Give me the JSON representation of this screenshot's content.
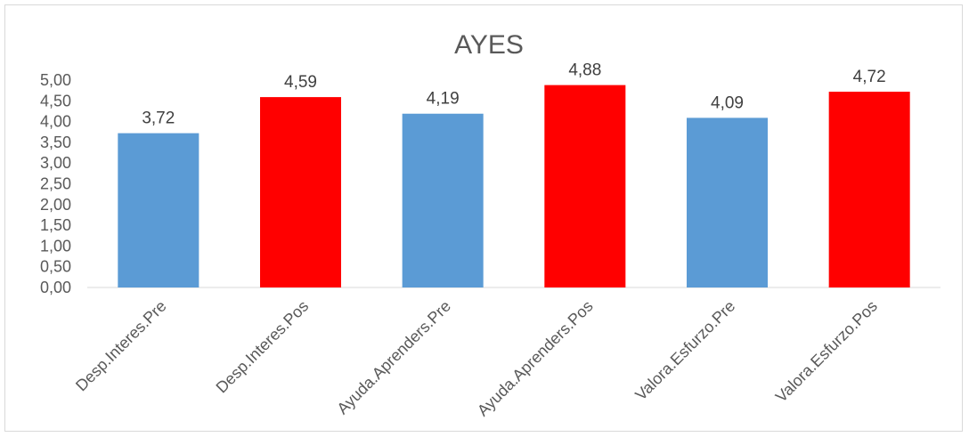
{
  "chart_data": {
    "type": "bar",
    "title": "AYES",
    "xlabel": "",
    "ylabel": "",
    "categories": [
      "Desp.Interes.Pre",
      "Desp.Interes.Pos",
      "Ayuda.Aprenders.Pre",
      "Ayuda.Aprenders.Pos",
      "Valora.Esfurzo.Pre",
      "Valora.Esfurzo.Pos"
    ],
    "values": [
      3.72,
      4.59,
      4.19,
      4.88,
      4.09,
      4.72
    ],
    "data_labels": [
      "3,72",
      "4,59",
      "4,19",
      "4,88",
      "4,09",
      "4,72"
    ],
    "bar_colors": [
      "#5b9bd5",
      "#ff0000",
      "#5b9bd5",
      "#ff0000",
      "#5b9bd5",
      "#ff0000"
    ],
    "ylim": [
      0,
      5
    ],
    "yticks": [
      "0,00",
      "0,50",
      "1,00",
      "1,50",
      "2,00",
      "2,50",
      "3,00",
      "3,50",
      "4,00",
      "4,50",
      "5,00"
    ],
    "grid": false,
    "legend": "none"
  }
}
